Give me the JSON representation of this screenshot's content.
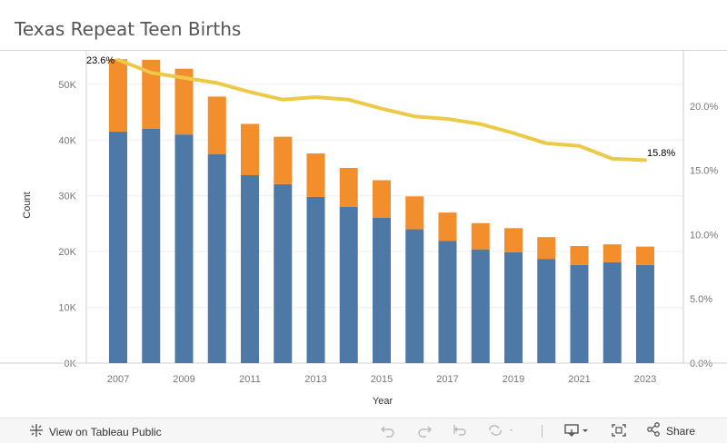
{
  "title": "Texas Repeat Teen Births",
  "chart_data": {
    "type": "bar",
    "stacked": true,
    "x": [
      2007,
      2008,
      2009,
      2010,
      2011,
      2012,
      2013,
      2014,
      2015,
      2016,
      2017,
      2018,
      2019,
      2020,
      2021,
      2022,
      2023
    ],
    "x_tick_labels": [
      "2007",
      "2009",
      "2011",
      "2013",
      "2015",
      "2017",
      "2019",
      "2021",
      "2023"
    ],
    "xlabel": "Year",
    "ylabel": "Count",
    "ylim": [
      0,
      56000
    ],
    "y_ticks": [
      0,
      10000,
      20000,
      30000,
      40000,
      50000
    ],
    "y_tick_labels": [
      "0K",
      "10K",
      "20K",
      "30K",
      "40K",
      "50K"
    ],
    "y2lim": [
      0,
      24.3
    ],
    "y2_ticks": [
      0,
      5,
      10,
      15,
      20
    ],
    "y2_tick_labels": [
      "0.0%",
      "5.0%",
      "10.0%",
      "15.0%",
      "20.0%"
    ],
    "series": [
      {
        "kind": "bar",
        "color": "#4e79a7",
        "values": [
          41500,
          42000,
          41000,
          37500,
          33700,
          32100,
          29800,
          28000,
          26100,
          24000,
          21900,
          20400,
          19900,
          18700,
          17600,
          18100,
          17600
        ]
      },
      {
        "kind": "bar",
        "color": "#f28e2b",
        "values": [
          13000,
          12400,
          11800,
          10300,
          9200,
          8500,
          7800,
          7000,
          6700,
          5900,
          5100,
          4700,
          4300,
          3900,
          3400,
          3200,
          3300
        ]
      },
      {
        "kind": "line",
        "axis": "right",
        "color": "#edc948",
        "values": [
          23.6,
          22.6,
          22.2,
          21.8,
          21.1,
          20.5,
          20.7,
          20.5,
          19.8,
          19.2,
          19.0,
          18.6,
          17.9,
          17.1,
          16.9,
          15.9,
          15.8
        ]
      }
    ],
    "line_labels": [
      "23.6%",
      "15.8%"
    ]
  },
  "toolbar": {
    "view_label": "View on Tableau Public",
    "share_label": "Share",
    "icons": [
      "tableau-logo-icon",
      "undo-icon",
      "redo-icon",
      "revert-icon",
      "refresh-icon",
      "download-icon",
      "fullscreen-icon",
      "share-icon"
    ]
  }
}
